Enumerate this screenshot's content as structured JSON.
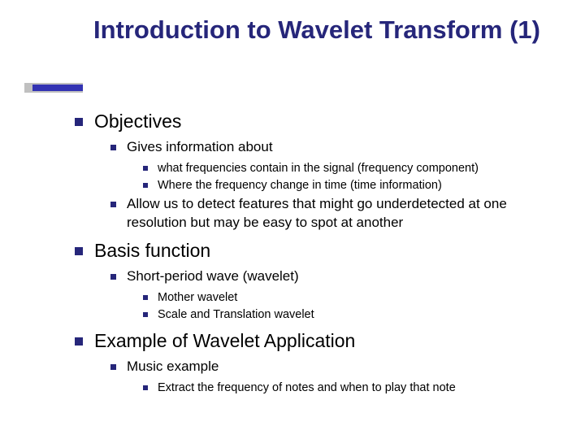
{
  "colors": {
    "title": "#26267a",
    "bullet": "#26267a",
    "accent_outer": "#c0c0c0",
    "accent_inner": "#3333b3",
    "text": "#000000",
    "background": "#ffffff"
  },
  "title": "Introduction to Wavelet Transform (1)",
  "outline": {
    "objectives": {
      "label": "Objectives",
      "gives_info": {
        "label": "Gives information about",
        "items": [
          "what frequencies contain in the signal (frequency component)",
          "Where the frequency change in time (time information)"
        ]
      },
      "detect": "Allow us to detect  features that might go underdetected at one resolution but may be easy to spot at another"
    },
    "basis": {
      "label": "Basis function",
      "short_period": {
        "label": "Short-period wave (wavelet)",
        "items": [
          "Mother wavelet",
          "Scale and Translation wavelet"
        ]
      }
    },
    "example": {
      "label": "Example of Wavelet Application",
      "music": {
        "label": "Music example",
        "items": [
          "Extract the frequency of notes and when to play that note"
        ]
      }
    }
  }
}
